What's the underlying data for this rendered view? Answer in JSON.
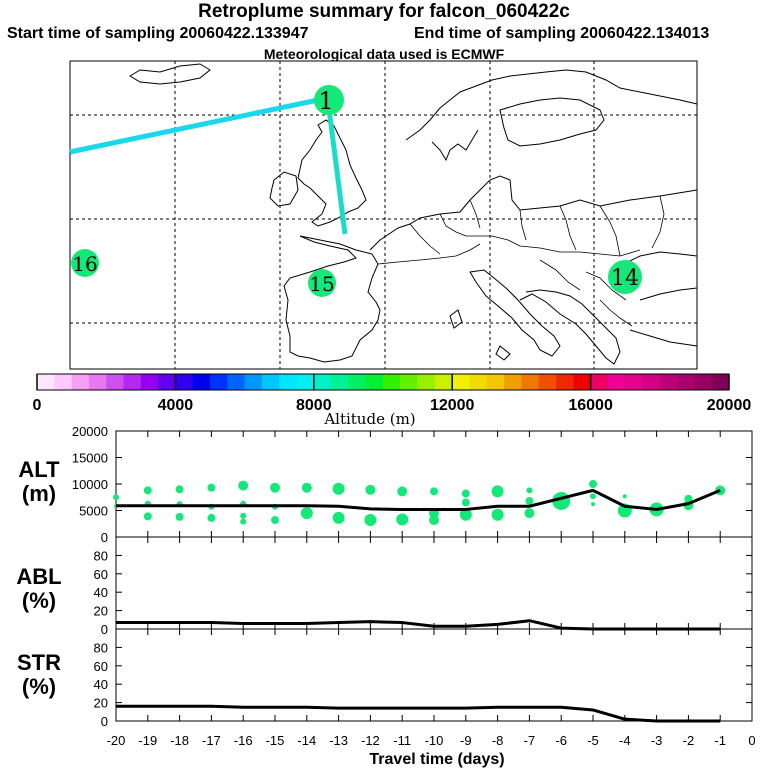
{
  "header": {
    "title": "Retroplume summary for falcon_060422c",
    "start_label": "Start time of sampling 20060422.133947",
    "end_label": "End time of sampling 20060422.134013",
    "met_label": "Meteorological data used is ECMWF"
  },
  "colors": {
    "track": "#19d7ec",
    "cluster": "#14e878",
    "line": "#000000"
  },
  "chart_data": [
    {
      "type": "map",
      "title": "Retroplume trajectory map",
      "cluster_labels": [
        {
          "label": "1",
          "day": -1,
          "altitude_m": 9000
        },
        {
          "label": "14",
          "day": -14,
          "altitude_m": 9000
        },
        {
          "label": "15",
          "day": -15,
          "altitude_m": 9000
        },
        {
          "label": "16",
          "day": -16,
          "altitude_m": 9000
        }
      ]
    },
    {
      "type": "colorbar",
      "xlabel": "Altitude (m)",
      "range": [
        0,
        20000
      ],
      "tick_labels": [
        "0",
        "4000",
        "8000",
        "12000",
        "16000",
        "20000"
      ],
      "colors": [
        "#ffe6ff",
        "#ffc8ff",
        "#f5a0f5",
        "#e678f0",
        "#cd50f0",
        "#b428f0",
        "#9600f0",
        "#6400f0",
        "#3200f0",
        "#0000f0",
        "#0032ff",
        "#0064ff",
        "#0096ff",
        "#00c8ff",
        "#00e6ff",
        "#00f0f0",
        "#00f0c8",
        "#00f096",
        "#00f064",
        "#00f032",
        "#32f000",
        "#64f000",
        "#96f000",
        "#c8f000",
        "#f0f000",
        "#f0dc00",
        "#f0c800",
        "#f0a000",
        "#f07800",
        "#f05000",
        "#f02800",
        "#f00000",
        "#f00064",
        "#f00096",
        "#e6008c",
        "#d20082",
        "#be0078",
        "#aa006e",
        "#960064",
        "#800056"
      ]
    },
    {
      "type": "line",
      "panel": "ALT",
      "ylabel_line1": "ALT",
      "ylabel_line2": "(m)",
      "ylim": [
        0,
        20000
      ],
      "y_ticks": [
        "0",
        "5000",
        "10000",
        "15000",
        "20000"
      ],
      "x": [
        -20,
        -19,
        -18,
        -17,
        -16,
        -15,
        -14,
        -13,
        -12,
        -11,
        -10,
        -9,
        -8,
        -7,
        -6,
        -5,
        -4,
        -3,
        -2,
        -1
      ],
      "series": [
        {
          "name": "mean altitude",
          "values": [
            5900,
            5900,
            5900,
            5900,
            5900,
            5900,
            5900,
            5800,
            5300,
            5200,
            5200,
            5200,
            5800,
            5800,
            7300,
            8800,
            5800,
            5200,
            6300,
            8800
          ]
        }
      ],
      "clusters": [
        {
          "day": -20,
          "alt": 7500,
          "size": 3
        },
        {
          "day": -20,
          "alt": 5800,
          "size": 2
        },
        {
          "day": -19,
          "alt": 8800,
          "size": 4
        },
        {
          "day": -19,
          "alt": 6300,
          "size": 3
        },
        {
          "day": -19,
          "alt": 3900,
          "size": 4
        },
        {
          "day": -18,
          "alt": 9000,
          "size": 4
        },
        {
          "day": -18,
          "alt": 6200,
          "size": 3
        },
        {
          "day": -18,
          "alt": 3800,
          "size": 4
        },
        {
          "day": -17,
          "alt": 9300,
          "size": 4
        },
        {
          "day": -17,
          "alt": 5700,
          "size": 3
        },
        {
          "day": -17,
          "alt": 3600,
          "size": 4
        },
        {
          "day": -16,
          "alt": 9700,
          "size": 5
        },
        {
          "day": -16,
          "alt": 6300,
          "size": 3
        },
        {
          "day": -16,
          "alt": 4000,
          "size": 3
        },
        {
          "day": -16,
          "alt": 2900,
          "size": 3
        },
        {
          "day": -15,
          "alt": 9300,
          "size": 5
        },
        {
          "day": -15,
          "alt": 5700,
          "size": 3
        },
        {
          "day": -15,
          "alt": 3200,
          "size": 4
        },
        {
          "day": -14,
          "alt": 9300,
          "size": 5
        },
        {
          "day": -14,
          "alt": 4500,
          "size": 6
        },
        {
          "day": -13,
          "alt": 9100,
          "size": 6
        },
        {
          "day": -13,
          "alt": 3600,
          "size": 6
        },
        {
          "day": -12,
          "alt": 8900,
          "size": 5
        },
        {
          "day": -12,
          "alt": 3200,
          "size": 6
        },
        {
          "day": -11,
          "alt": 8600,
          "size": 5
        },
        {
          "day": -11,
          "alt": 3300,
          "size": 6
        },
        {
          "day": -10,
          "alt": 8600,
          "size": 4
        },
        {
          "day": -10,
          "alt": 4500,
          "size": 5
        },
        {
          "day": -10,
          "alt": 3200,
          "size": 5
        },
        {
          "day": -9,
          "alt": 8200,
          "size": 4
        },
        {
          "day": -9,
          "alt": 6500,
          "size": 4
        },
        {
          "day": -9,
          "alt": 4200,
          "size": 6
        },
        {
          "day": -8,
          "alt": 8600,
          "size": 6
        },
        {
          "day": -8,
          "alt": 4200,
          "size": 6
        },
        {
          "day": -7,
          "alt": 8800,
          "size": 3
        },
        {
          "day": -7,
          "alt": 6800,
          "size": 4
        },
        {
          "day": -7,
          "alt": 4500,
          "size": 5
        },
        {
          "day": -6,
          "alt": 6800,
          "size": 9
        },
        {
          "day": -5,
          "alt": 10000,
          "size": 4
        },
        {
          "day": -5,
          "alt": 7700,
          "size": 3
        },
        {
          "day": -5,
          "alt": 6200,
          "size": 2
        },
        {
          "day": -4,
          "alt": 7700,
          "size": 2
        },
        {
          "day": -4,
          "alt": 5000,
          "size": 7
        },
        {
          "day": -3,
          "alt": 5200,
          "size": 7
        },
        {
          "day": -2,
          "alt": 7200,
          "size": 4
        },
        {
          "day": -2,
          "alt": 6000,
          "size": 5
        },
        {
          "day": -1,
          "alt": 8800,
          "size": 5
        }
      ]
    },
    {
      "type": "line",
      "panel": "ABL",
      "ylabel_line1": "ABL",
      "ylabel_line2": "(%)",
      "ylim": [
        0,
        100
      ],
      "y_ticks": [
        "0",
        "20",
        "40",
        "60",
        "80"
      ],
      "x": [
        -20,
        -19,
        -18,
        -17,
        -16,
        -15,
        -14,
        -13,
        -12,
        -11,
        -10,
        -9,
        -8,
        -7,
        -6,
        -5,
        -4,
        -3,
        -2,
        -1
      ],
      "series": [
        {
          "name": "ABL fraction",
          "values": [
            7,
            7,
            7,
            7,
            6,
            6,
            6,
            7,
            8,
            7,
            3,
            3,
            5,
            9,
            1,
            0,
            0,
            0,
            0,
            0
          ]
        }
      ]
    },
    {
      "type": "line",
      "panel": "STR",
      "ylabel_line1": "STR",
      "ylabel_line2": "(%)",
      "ylim": [
        0,
        100
      ],
      "y_ticks": [
        "0",
        "20",
        "40",
        "60",
        "80"
      ],
      "x": [
        -20,
        -19,
        -18,
        -17,
        -16,
        -15,
        -14,
        -13,
        -12,
        -11,
        -10,
        -9,
        -8,
        -7,
        -6,
        -5,
        -4,
        -3,
        -2,
        -1
      ],
      "series": [
        {
          "name": "stratosphere fraction",
          "values": [
            16,
            16,
            16,
            16,
            15,
            15,
            15,
            14,
            14,
            14,
            14,
            14,
            15,
            15,
            15,
            12,
            2,
            0,
            0,
            0
          ]
        }
      ],
      "xlabel": "Travel time (days)",
      "x_ticks": [
        "-20",
        "-19",
        "-18",
        "-17",
        "-16",
        "-15",
        "-14",
        "-13",
        "-12",
        "-11",
        "-10",
        "-9",
        "-8",
        "-7",
        "-6",
        "-5",
        "-4",
        "-3",
        "-2",
        "-1",
        "0"
      ]
    }
  ]
}
